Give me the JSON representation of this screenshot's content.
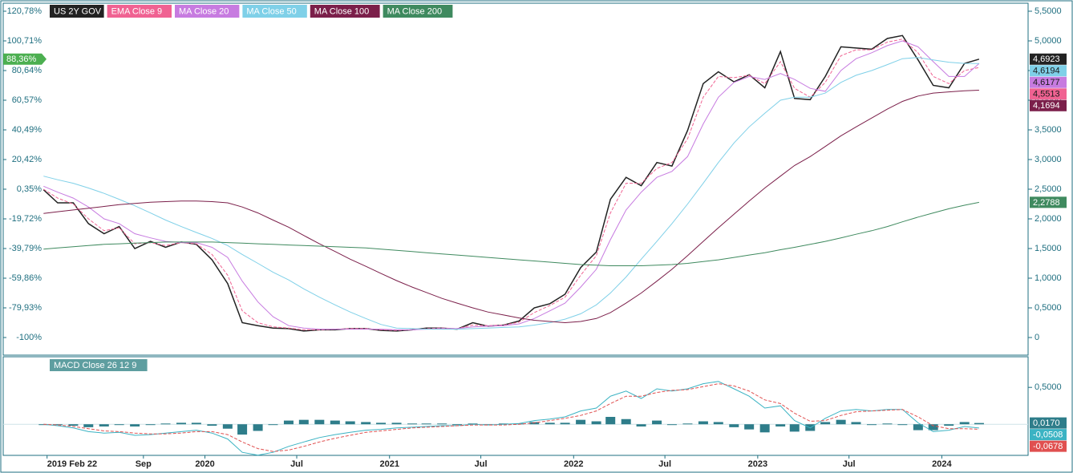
{
  "chart_data": [
    {
      "type": "line",
      "x": [
        "2019-02",
        "2019-03",
        "2019-04",
        "2019-05",
        "2019-06",
        "2019-07",
        "2019-08",
        "2019-09",
        "2019-10",
        "2019-11",
        "2019-12",
        "2020-01",
        "2020-02",
        "2020-03",
        "2020-04",
        "2020-05",
        "2020-06",
        "2020-07",
        "2020-08",
        "2020-09",
        "2020-10",
        "2020-11",
        "2020-12",
        "2021-01",
        "2021-02",
        "2021-03",
        "2021-04",
        "2021-05",
        "2021-06",
        "2021-07",
        "2021-08",
        "2021-09",
        "2021-10",
        "2021-11",
        "2021-12",
        "2022-01",
        "2022-02",
        "2022-03",
        "2022-04",
        "2022-05",
        "2022-06",
        "2022-07",
        "2022-08",
        "2022-09",
        "2022-10",
        "2022-11",
        "2022-12",
        "2023-01",
        "2023-02",
        "2023-03",
        "2023-04",
        "2023-05",
        "2023-06",
        "2023-07",
        "2023-08",
        "2023-09",
        "2023-10",
        "2023-11",
        "2023-12",
        "2024-01",
        "2024-02",
        "2024-03"
      ],
      "xlim": [
        "2019-01-01",
        "2024-06-01"
      ],
      "xticks": [
        {
          "value": "2019-02-22",
          "label": "2019 Feb 22"
        },
        {
          "value": "2019-09-01",
          "label": "Sep"
        },
        {
          "value": "2020-01-01",
          "label": "2020"
        },
        {
          "value": "2020-07-01",
          "label": "Jul"
        },
        {
          "value": "2021-01-01",
          "label": "2021"
        },
        {
          "value": "2021-07-01",
          "label": "Jul"
        },
        {
          "value": "2022-01-01",
          "label": "2022"
        },
        {
          "value": "2022-07-01",
          "label": "Jul"
        },
        {
          "value": "2023-01-01",
          "label": "2023"
        },
        {
          "value": "2023-07-01",
          "label": "Jul"
        },
        {
          "value": "2024-01-01",
          "label": "2024"
        }
      ],
      "ylim": [
        -100,
        120.78
      ],
      "yticks": [
        {
          "value": 120.78,
          "label": "120,78%"
        },
        {
          "value": 100.71,
          "label": "100,71%"
        },
        {
          "value": 80.64,
          "label": "80,64%"
        },
        {
          "value": 60.57,
          "label": "60,57%"
        },
        {
          "value": 40.49,
          "label": "40,49%"
        },
        {
          "value": 20.42,
          "label": "20,42%"
        },
        {
          "value": 0.35,
          "label": "0,35%"
        },
        {
          "value": -19.72,
          "label": "-19,72%"
        },
        {
          "value": -39.79,
          "label": "-39,79%"
        },
        {
          "value": -59.86,
          "label": "-59,86%"
        },
        {
          "value": -79.93,
          "label": "-79,93%"
        },
        {
          "value": -100,
          "label": "-100%"
        }
      ],
      "y_current": {
        "value": 88.36,
        "label": "88,36%",
        "color": "#4caf50"
      },
      "y2lim": [
        0,
        5.5
      ],
      "y2ticks": [
        0,
        {
          "value": 0.5,
          "label": "0,5000"
        },
        {
          "value": 1,
          "label": "1,0000"
        },
        {
          "value": 1.5,
          "label": "1,5000"
        },
        {
          "value": 2,
          "label": "2,0000"
        },
        {
          "value": 2.5,
          "label": "2,5000"
        },
        {
          "value": 3,
          "label": "3,0000"
        },
        {
          "value": 3.5,
          "label": "3,5000"
        },
        {
          "value": 4,
          "label": "4,0000"
        },
        {
          "value": 4.5,
          "label": "4,5000"
        },
        {
          "value": 5,
          "label": "5,0000"
        },
        {
          "value": 5.5,
          "label": "5,5000"
        }
      ],
      "series": [
        {
          "name": "US 2Y GOV",
          "color": "#222222",
          "axis": "y2",
          "last_label": "4,6923",
          "values": [
            2.49,
            2.27,
            2.27,
            1.92,
            1.75,
            1.87,
            1.5,
            1.62,
            1.52,
            1.61,
            1.57,
            1.31,
            0.91,
            0.25,
            0.2,
            0.16,
            0.15,
            0.11,
            0.13,
            0.13,
            0.15,
            0.15,
            0.12,
            0.11,
            0.13,
            0.16,
            0.16,
            0.14,
            0.25,
            0.19,
            0.21,
            0.28,
            0.5,
            0.57,
            0.73,
            1.18,
            1.44,
            2.33,
            2.7,
            2.56,
            2.95,
            2.89,
            3.49,
            4.28,
            4.48,
            4.31,
            4.43,
            4.21,
            4.82,
            4.03,
            4.01,
            4.4,
            4.9,
            4.88,
            4.86,
            5.04,
            5.09,
            4.68,
            4.25,
            4.21,
            4.62,
            4.6923
          ]
        },
        {
          "name": "EMA Close 9",
          "color": "#f06292",
          "axis": "y2",
          "last_label": "4,5513",
          "values": [
            2.5,
            2.35,
            2.25,
            2.0,
            1.8,
            1.85,
            1.58,
            1.6,
            1.55,
            1.6,
            1.58,
            1.4,
            1.05,
            0.45,
            0.25,
            0.18,
            0.16,
            0.13,
            0.13,
            0.14,
            0.15,
            0.15,
            0.13,
            0.12,
            0.13,
            0.15,
            0.16,
            0.15,
            0.21,
            0.2,
            0.21,
            0.26,
            0.42,
            0.54,
            0.68,
            1.05,
            1.38,
            2.1,
            2.6,
            2.6,
            2.85,
            2.95,
            3.35,
            4.05,
            4.4,
            4.38,
            4.42,
            4.28,
            4.65,
            4.2,
            4.05,
            4.3,
            4.75,
            4.85,
            4.85,
            4.98,
            5.03,
            4.8,
            4.4,
            4.28,
            4.5,
            4.5513
          ]
        },
        {
          "name": "MA Close 20",
          "color": "#c77be0",
          "axis": "y2",
          "last_label": "4,6177",
          "values": [
            2.55,
            2.45,
            2.35,
            2.2,
            2.0,
            1.92,
            1.75,
            1.68,
            1.62,
            1.6,
            1.6,
            1.52,
            1.35,
            0.95,
            0.6,
            0.35,
            0.2,
            0.16,
            0.14,
            0.14,
            0.14,
            0.14,
            0.14,
            0.13,
            0.13,
            0.14,
            0.15,
            0.15,
            0.18,
            0.19,
            0.2,
            0.23,
            0.32,
            0.45,
            0.58,
            0.85,
            1.15,
            1.65,
            2.15,
            2.45,
            2.7,
            2.8,
            3.05,
            3.6,
            4.05,
            4.3,
            4.4,
            4.35,
            4.45,
            4.35,
            4.2,
            4.15,
            4.5,
            4.7,
            4.8,
            4.92,
            5.0,
            4.9,
            4.65,
            4.4,
            4.4,
            4.6177
          ]
        },
        {
          "name": "MA Close 50",
          "color": "#7fd0e8",
          "axis": "y2",
          "last_label": "4,6194",
          "values": [
            2.72,
            2.66,
            2.6,
            2.52,
            2.43,
            2.33,
            2.22,
            2.1,
            1.98,
            1.87,
            1.77,
            1.67,
            1.55,
            1.4,
            1.25,
            1.1,
            0.97,
            0.82,
            0.68,
            0.55,
            0.43,
            0.32,
            0.22,
            0.16,
            0.15,
            0.14,
            0.14,
            0.14,
            0.15,
            0.16,
            0.17,
            0.18,
            0.21,
            0.25,
            0.31,
            0.4,
            0.55,
            0.75,
            1.02,
            1.32,
            1.62,
            1.92,
            2.25,
            2.6,
            2.95,
            3.28,
            3.55,
            3.78,
            4.0,
            4.05,
            4.05,
            4.12,
            4.3,
            4.42,
            4.5,
            4.6,
            4.7,
            4.72,
            4.68,
            4.64,
            4.62,
            4.6194
          ]
        },
        {
          "name": "MA Close 100",
          "color": "#7b1f4a",
          "axis": "y2",
          "last_label": "4,1694",
          "values": [
            2.09,
            2.12,
            2.15,
            2.18,
            2.21,
            2.24,
            2.26,
            2.28,
            2.29,
            2.3,
            2.3,
            2.29,
            2.27,
            2.2,
            2.1,
            1.98,
            1.86,
            1.72,
            1.58,
            1.45,
            1.32,
            1.2,
            1.08,
            0.96,
            0.85,
            0.76,
            0.66,
            0.58,
            0.5,
            0.43,
            0.38,
            0.33,
            0.29,
            0.27,
            0.25,
            0.27,
            0.32,
            0.42,
            0.58,
            0.75,
            0.95,
            1.15,
            1.38,
            1.62,
            1.85,
            2.08,
            2.3,
            2.52,
            2.72,
            2.9,
            3.05,
            3.22,
            3.4,
            3.55,
            3.7,
            3.85,
            3.98,
            4.07,
            4.12,
            4.14,
            4.16,
            4.1694
          ]
        },
        {
          "name": "MA Close 200",
          "color": "#3f8a5f",
          "axis": "y2",
          "last_label": "2,2788",
          "values": [
            1.49,
            1.51,
            1.53,
            1.55,
            1.57,
            1.58,
            1.59,
            1.6,
            1.61,
            1.61,
            1.61,
            1.61,
            1.6,
            1.59,
            1.58,
            1.57,
            1.56,
            1.55,
            1.54,
            1.53,
            1.52,
            1.51,
            1.49,
            1.47,
            1.45,
            1.43,
            1.41,
            1.39,
            1.37,
            1.35,
            1.33,
            1.31,
            1.29,
            1.27,
            1.25,
            1.23,
            1.22,
            1.21,
            1.21,
            1.21,
            1.22,
            1.23,
            1.25,
            1.28,
            1.31,
            1.35,
            1.39,
            1.43,
            1.48,
            1.52,
            1.57,
            1.62,
            1.68,
            1.74,
            1.8,
            1.87,
            1.95,
            2.03,
            2.1,
            2.17,
            2.23,
            2.2788
          ]
        }
      ]
    },
    {
      "type": "macd",
      "legend": "MACD Close 26 12 9",
      "ylim": [
        -0.4,
        0.85
      ],
      "yticks": [
        {
          "value": 0.5,
          "label": "0,5000"
        }
      ],
      "series": [
        {
          "name": "histogram",
          "kind": "bar",
          "color": "#2e7d8a",
          "last_label": "0,0170",
          "values": [
            0,
            -0.01,
            -0.02,
            -0.04,
            -0.03,
            -0.01,
            -0.03,
            -0.01,
            0.01,
            0.02,
            0.02,
            -0.02,
            -0.06,
            -0.14,
            -0.09,
            -0.01,
            0.05,
            0.06,
            0.06,
            0.05,
            0.04,
            0.03,
            0.02,
            0.02,
            0.01,
            0.01,
            0.01,
            0,
            0.01,
            0,
            0.01,
            0.01,
            0.03,
            0.02,
            0.02,
            0.06,
            0.04,
            0.1,
            0.07,
            -0.03,
            0.05,
            -0.01,
            0.01,
            0.04,
            0.03,
            -0.04,
            -0.07,
            -0.11,
            -0.03,
            -0.1,
            -0.09,
            0.03,
            0.06,
            0.03,
            0,
            0.01,
            0,
            -0.08,
            -0.08,
            -0.02,
            0.03,
            0.017
          ]
        },
        {
          "name": "macd",
          "kind": "line",
          "color": "#3bb3c3",
          "last_label": "-0,0508",
          "values": [
            0.0,
            -0.02,
            -0.05,
            -0.1,
            -0.12,
            -0.11,
            -0.15,
            -0.14,
            -0.12,
            -0.1,
            -0.08,
            -0.12,
            -0.2,
            -0.38,
            -0.42,
            -0.38,
            -0.3,
            -0.24,
            -0.18,
            -0.14,
            -0.11,
            -0.08,
            -0.07,
            -0.05,
            -0.04,
            -0.03,
            -0.02,
            -0.02,
            0.0,
            -0.01,
            0.0,
            0.01,
            0.05,
            0.07,
            0.1,
            0.18,
            0.22,
            0.38,
            0.45,
            0.35,
            0.48,
            0.45,
            0.48,
            0.55,
            0.58,
            0.48,
            0.38,
            0.22,
            0.25,
            0.05,
            -0.05,
            0.08,
            0.18,
            0.2,
            0.18,
            0.2,
            0.2,
            0.02,
            -0.1,
            -0.08,
            -0.03,
            -0.0508
          ]
        },
        {
          "name": "signal",
          "kind": "dash",
          "color": "#e05050",
          "last_label": "-0,0678",
          "values": [
            0.0,
            -0.01,
            -0.03,
            -0.06,
            -0.09,
            -0.1,
            -0.12,
            -0.13,
            -0.13,
            -0.12,
            -0.1,
            -0.1,
            -0.14,
            -0.24,
            -0.33,
            -0.37,
            -0.35,
            -0.3,
            -0.24,
            -0.19,
            -0.15,
            -0.11,
            -0.09,
            -0.07,
            -0.05,
            -0.04,
            -0.03,
            -0.02,
            -0.01,
            -0.01,
            -0.01,
            0.0,
            0.02,
            0.05,
            0.08,
            0.12,
            0.18,
            0.28,
            0.38,
            0.38,
            0.43,
            0.46,
            0.47,
            0.51,
            0.55,
            0.52,
            0.45,
            0.33,
            0.28,
            0.15,
            0.04,
            0.05,
            0.12,
            0.17,
            0.18,
            0.19,
            0.2,
            0.1,
            -0.02,
            -0.06,
            -0.06,
            -0.0678
          ]
        }
      ]
    }
  ]
}
